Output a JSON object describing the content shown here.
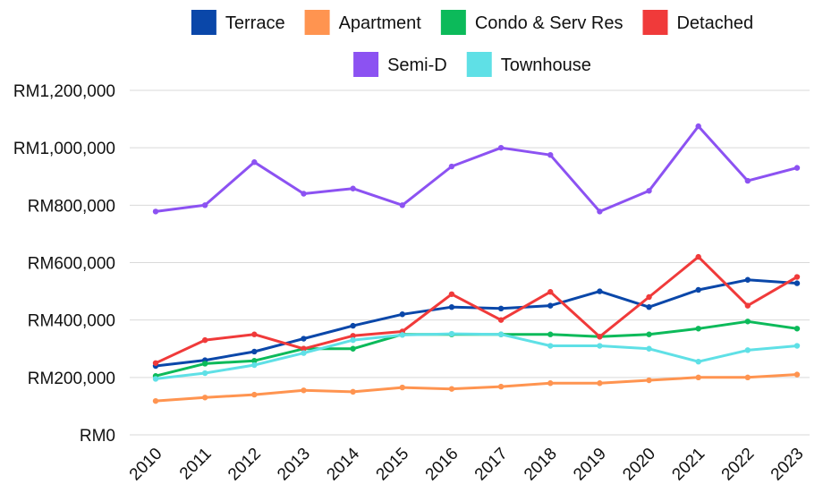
{
  "chart_data": {
    "type": "line",
    "title": "",
    "xlabel": "",
    "ylabel": "",
    "categories": [
      "2010",
      "2011",
      "2012",
      "2013",
      "2014",
      "2015",
      "2016",
      "2017",
      "2018",
      "2019",
      "2020",
      "2021",
      "2022",
      "2023"
    ],
    "ylim": [
      0,
      1200000
    ],
    "y_ticks": [
      0,
      200000,
      400000,
      600000,
      800000,
      1000000,
      1200000
    ],
    "y_tick_labels": [
      "RM0",
      "RM200,000",
      "RM400,000",
      "RM600,000",
      "RM800,000",
      "RM1,000,000",
      "RM1,200,000"
    ],
    "grid": "horizontal",
    "legend_position": "top",
    "series": [
      {
        "name": "Terrace",
        "color": "#0a47a9",
        "values": [
          240000,
          260000,
          290000,
          335000,
          380000,
          420000,
          445000,
          440000,
          450000,
          500000,
          445000,
          505000,
          540000,
          528000
        ]
      },
      {
        "name": "Apartment",
        "color": "#ff9450",
        "values": [
          118000,
          130000,
          140000,
          155000,
          150000,
          165000,
          160000,
          168000,
          180000,
          180000,
          190000,
          200000,
          200000,
          210000
        ]
      },
      {
        "name": "Condo & Serv Res",
        "color": "#0cba5a",
        "values": [
          205000,
          248000,
          258000,
          300000,
          300000,
          350000,
          350000,
          350000,
          350000,
          342000,
          350000,
          370000,
          395000,
          370000
        ]
      },
      {
        "name": "Detached",
        "color": "#f03a3a",
        "values": [
          250000,
          330000,
          350000,
          300000,
          345000,
          360000,
          490000,
          400000,
          498000,
          342000,
          480000,
          620000,
          450000,
          550000
        ]
      },
      {
        "name": "Semi-D",
        "color": "#8c52f2",
        "values": [
          778000,
          800000,
          950000,
          840000,
          858000,
          800000,
          935000,
          1000000,
          975000,
          778000,
          850000,
          1075000,
          885000,
          930000
        ]
      },
      {
        "name": "Townhouse",
        "color": "#5fe0e6",
        "values": [
          195000,
          215000,
          243000,
          285000,
          330000,
          348000,
          352000,
          350000,
          310000,
          310000,
          300000,
          255000,
          295000,
          310000
        ]
      }
    ]
  }
}
